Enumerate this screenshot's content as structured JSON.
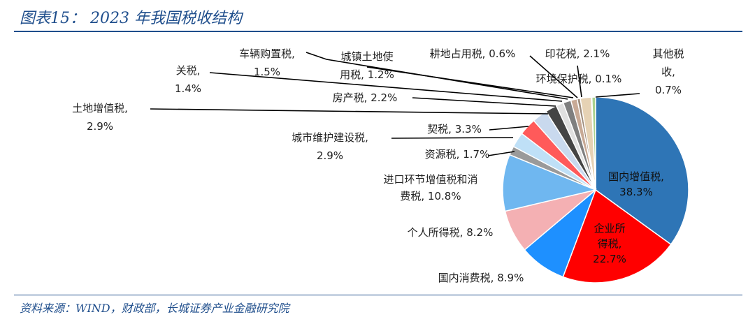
{
  "title": "图表15： 2023 年我国税收结构",
  "source": "资料来源：WIND，财政部，长城证券产业金融研究院",
  "chart_data": {
    "type": "pie",
    "start_angle_deg": 0,
    "direction": "clockwise",
    "slices": [
      {
        "name": "国内增值税",
        "value": 38.3,
        "color": "#2e75b6",
        "label": [
          "国内增值税,",
          "38.3%"
        ]
      },
      {
        "name": "企业所得税",
        "value": 22.7,
        "color": "#ff0000",
        "label": [
          "企业所",
          "得税,",
          "22.7%"
        ]
      },
      {
        "name": "国内消费税",
        "value": 8.9,
        "color": "#1e90ff",
        "label": [
          "国内消费税, 8.9%"
        ]
      },
      {
        "name": "个人所得税",
        "value": 8.2,
        "color": "#f4b0b3",
        "label": [
          "个人所得税, 8.2%"
        ]
      },
      {
        "name": "进口环节增值税和消费税",
        "value": 10.8,
        "color": "#6fb7f0",
        "label": [
          "进口环节增值税和消",
          "费税, 10.8%"
        ]
      },
      {
        "name": "资源税",
        "value": 1.7,
        "color": "#9a9a9a",
        "label": [
          "资源税, 1.7%"
        ]
      },
      {
        "name": "城市维护建设税",
        "value": 2.9,
        "color": "#bfe0f7",
        "label": [
          "城市维护建设税,",
          "2.9%"
        ]
      },
      {
        "name": "契税",
        "value": 3.3,
        "color": "#ff5a5a",
        "label": [
          "契税, 3.3%"
        ]
      },
      {
        "name": "土地增值税",
        "value": 2.9,
        "color": "#c9d9ee",
        "label": [
          "土地增值税,",
          "2.9%"
        ]
      },
      {
        "name": "房产税",
        "value": 2.2,
        "color": "#444444",
        "label": [
          "房产税, 2.2%"
        ]
      },
      {
        "name": "关税",
        "value": 1.4,
        "color": "#e0e0e0",
        "label": [
          "关税,",
          "1.4%"
        ]
      },
      {
        "name": "车辆购置税",
        "value": 1.5,
        "color": "#7f7f7f",
        "label": [
          "车辆购置税,",
          "1.5%"
        ]
      },
      {
        "name": "城镇土地使用税",
        "value": 1.2,
        "color": "#c8aa96",
        "label": [
          "城镇土地使",
          "用税, 1.2%"
        ]
      },
      {
        "name": "耕地占用税",
        "value": 0.6,
        "color": "#9e8c7c",
        "label": [
          "耕地占用税, 0.6%"
        ]
      },
      {
        "name": "印花税",
        "value": 2.1,
        "color": "#e6d2b4",
        "label": [
          "印花税, 2.1%"
        ]
      },
      {
        "name": "环境保护税",
        "value": 0.1,
        "color": "#5b7a3a",
        "label": [
          "环境保护税, 0.1%"
        ]
      },
      {
        "name": "其他税收",
        "value": 0.7,
        "color": "#a9d18e",
        "label": [
          "其他税",
          "收,",
          "0.7%"
        ]
      }
    ]
  }
}
